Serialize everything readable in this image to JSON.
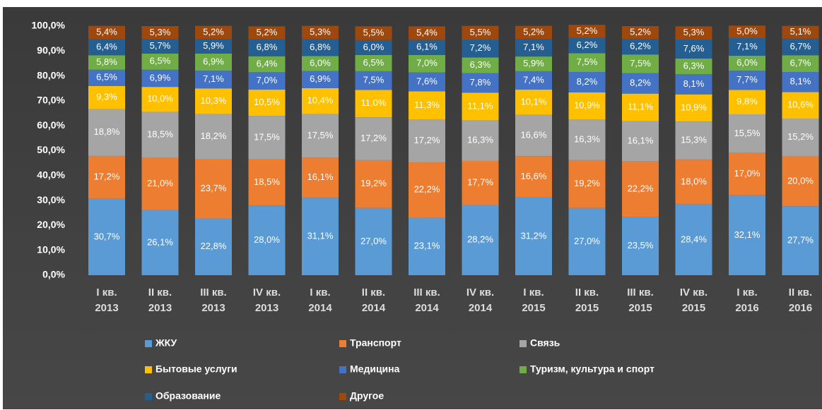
{
  "chart_data": {
    "type": "stacked_bar",
    "categories": [
      "I кв. 2013",
      "II кв. 2013",
      "III кв. 2013",
      "IV кв. 2013",
      "I кв. 2014",
      "II кв. 2014",
      "III кв. 2014",
      "IV кв. 2014",
      "I кв. 2015",
      "II кв. 2015",
      "III кв. 2015",
      "IV кв. 2015",
      "I кв. 2016",
      "II кв. 2016"
    ],
    "ylim": [
      0,
      100
    ],
    "yticks": [
      {
        "value": 0,
        "label": "0,0%"
      },
      {
        "value": 10,
        "label": "10,0%"
      },
      {
        "value": 20,
        "label": "20,0%"
      },
      {
        "value": 30,
        "label": "30,0%"
      },
      {
        "value": 40,
        "label": "40,0%"
      },
      {
        "value": 50,
        "label": "50,0%"
      },
      {
        "value": 60,
        "label": "60,0%"
      },
      {
        "value": 70,
        "label": "70,0%"
      },
      {
        "value": 80,
        "label": "80,0%"
      },
      {
        "value": 90,
        "label": "90,0%"
      },
      {
        "value": 100,
        "label": "100,0%"
      }
    ],
    "series": [
      {
        "name": "ЖКУ",
        "color": "#5b9bd5",
        "values": [
          30.7,
          26.1,
          22.8,
          28.0,
          31.1,
          27.0,
          23.1,
          28.2,
          31.2,
          27.0,
          23.5,
          28.4,
          32.1,
          27.7
        ],
        "value_labels": [
          "30,7%",
          "26,1%",
          "22,8%",
          "28,0%",
          "31,1%",
          "27,0%",
          "23,1%",
          "28,2%",
          "31,2%",
          "27,0%",
          "23,5%",
          "28,4%",
          "32,1%",
          "27,7%"
        ]
      },
      {
        "name": "Транспорт",
        "color": "#ed7d31",
        "values": [
          17.2,
          21.0,
          23.7,
          18.5,
          16.1,
          19.2,
          22.2,
          17.7,
          16.6,
          19.2,
          22.2,
          18.0,
          17.0,
          20.0
        ],
        "value_labels": [
          "17,2%",
          "21,0%",
          "23,7%",
          "18,5%",
          "16,1%",
          "19,2%",
          "22,2%",
          "17,7%",
          "16,6%",
          "19,2%",
          "22,2%",
          "18,0%",
          "17,0%",
          "20,0%"
        ]
      },
      {
        "name": "Связь",
        "color": "#a5a5a5",
        "values": [
          18.8,
          18.5,
          18.2,
          17.5,
          17.5,
          17.2,
          17.2,
          16.3,
          16.6,
          16.3,
          16.1,
          15.3,
          15.5,
          15.2
        ],
        "value_labels": [
          "18,8%",
          "18,5%",
          "18,2%",
          "17,5%",
          "17,5%",
          "17,2%",
          "17,2%",
          "16,3%",
          "16,6%",
          "16,3%",
          "16,1%",
          "15,3%",
          "15,5%",
          "15,2%"
        ]
      },
      {
        "name": "Бытовые услуги",
        "color": "#ffc000",
        "values": [
          9.3,
          10.0,
          10.3,
          10.5,
          10.4,
          11.0,
          11.3,
          11.1,
          10.1,
          10.9,
          11.1,
          10.9,
          9.8,
          10.6
        ],
        "value_labels": [
          "9,3%",
          "10,0%",
          "10,3%",
          "10,5%",
          "10,4%",
          "11,0%",
          "11,3%",
          "11,1%",
          "10,1%",
          "10,9%",
          "11,1%",
          "10,9%",
          "9,8%",
          "10,6%"
        ]
      },
      {
        "name": "Медицина",
        "color": "#4472c4",
        "values": [
          6.5,
          6.9,
          7.1,
          7.0,
          6.9,
          7.5,
          7.6,
          7.8,
          7.4,
          8.2,
          8.2,
          8.1,
          7.7,
          8.1
        ],
        "value_labels": [
          "6,5%",
          "6,9%",
          "7,1%",
          "7,0%",
          "6,9%",
          "7,5%",
          "7,6%",
          "7,8%",
          "7,4%",
          "8,2%",
          "8,2%",
          "8,1%",
          "7,7%",
          "8,1%"
        ]
      },
      {
        "name": "Туризм, культура и спорт",
        "color": "#70ad47",
        "values": [
          5.8,
          6.5,
          6.9,
          6.4,
          6.0,
          6.5,
          7.0,
          6.3,
          5.9,
          7.5,
          7.5,
          6.3,
          6.0,
          6.7
        ],
        "value_labels": [
          "5,8%",
          "6,5%",
          "6,9%",
          "6,4%",
          "6,0%",
          "6,5%",
          "7,0%",
          "6,3%",
          "5,9%",
          "7,5%",
          "7,5%",
          "6,3%",
          "6,0%",
          "6,7%"
        ]
      },
      {
        "name": "Образование",
        "color": "#255e91",
        "values": [
          6.4,
          5.7,
          5.9,
          6.8,
          6.8,
          6.0,
          6.1,
          7.2,
          7.1,
          6.2,
          6.2,
          7.6,
          7.1,
          6.7
        ],
        "value_labels": [
          "6,4%",
          "5,7%",
          "5,9%",
          "6,8%",
          "6,8%",
          "6,0%",
          "6,1%",
          "7,2%",
          "7,1%",
          "6,2%",
          "6,2%",
          "7,6%",
          "7,1%",
          "6,7%"
        ]
      },
      {
        "name": "Другое",
        "color": "#9e480e",
        "values": [
          5.4,
          5.3,
          5.2,
          5.2,
          5.3,
          5.5,
          5.4,
          5.5,
          5.2,
          5.2,
          5.2,
          5.3,
          5.0,
          5.1
        ],
        "value_labels": [
          "5,4%",
          "5,3%",
          "5,2%",
          "5,2%",
          "5,3%",
          "5,5%",
          "5,4%",
          "5,5%",
          "5,2%",
          "5,2%",
          "5,2%",
          "5,3%",
          "5,0%",
          "5,1%"
        ]
      }
    ]
  }
}
